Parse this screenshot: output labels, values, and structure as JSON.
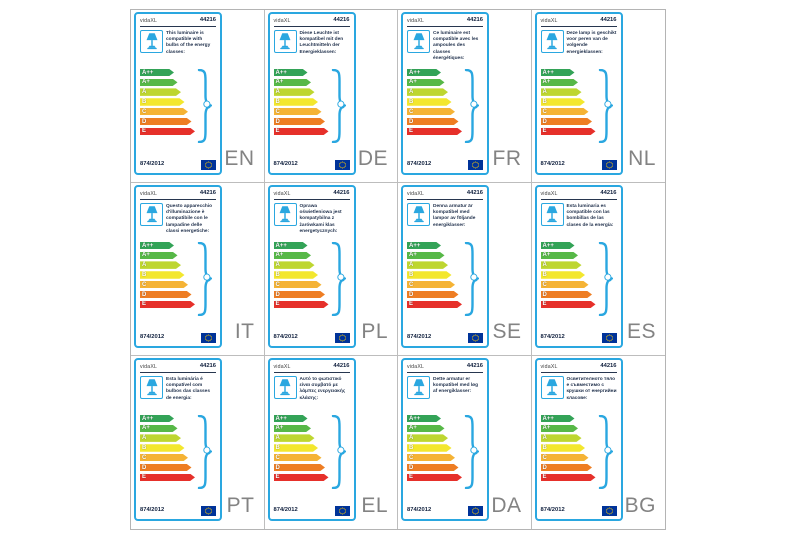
{
  "grid": {
    "columns": 4,
    "rows": 3
  },
  "shared": {
    "brand": "vidaXL",
    "model": "44216",
    "regulation": "874/2012",
    "accent_color": "#2aa7e0",
    "eu_flag": {
      "field_color": "#003399",
      "star_color": "#ffcc00"
    },
    "icons": [
      "table-lamp-icon",
      "bulb-icon",
      "curly-brace-icon",
      "eu-flag-icon"
    ],
    "energy_classes": [
      {
        "label": "A++",
        "color": "#33a357"
      },
      {
        "label": "A+",
        "color": "#57b847"
      },
      {
        "label": "A",
        "color": "#bed630"
      },
      {
        "label": "B",
        "color": "#f3e72e"
      },
      {
        "label": "C",
        "color": "#f5b335"
      },
      {
        "label": "D",
        "color": "#ee7d23"
      },
      {
        "label": "E",
        "color": "#e6302a"
      }
    ]
  },
  "cards": [
    {
      "lang": "EN",
      "description": "This luminaire is compatible with bulbs of the energy classes:"
    },
    {
      "lang": "DE",
      "description": "Diese Leuchte ist kompatibel mit den Leuchtmitteln der Energieklassen:"
    },
    {
      "lang": "FR",
      "description": "Ce luminaire est compatible avec les ampoules des classes énergétiques:"
    },
    {
      "lang": "NL",
      "description": "Deze lamp is geschikt voor peren van de volgende energieklassen:"
    },
    {
      "lang": "IT",
      "description": "Questo apparecchio d'illuminazione è compatibile con le lampadine delle classi energetiche:"
    },
    {
      "lang": "PL",
      "description": "Oprawa oświetleniowa jest kompatybilna z żarówkami klas energetycznych:"
    },
    {
      "lang": "SE",
      "description": "Denna armatur är kompatibel med lampor av följande energiklasser:"
    },
    {
      "lang": "ES",
      "description": "Esta luminaria es compatible con las bombillas de las clases de la energía:"
    },
    {
      "lang": "PT",
      "description": "Esta luminária é compatível com bulbos das classes de energia:"
    },
    {
      "lang": "EL",
      "description": "Αυτό το φωτιστικό είναι συμβατό με λάμπες ενεργειακής κλάσης:"
    },
    {
      "lang": "DA",
      "description": "Dette armatur er kompatibel med løg af energiklasser:"
    },
    {
      "lang": "BG",
      "description": "Осветителното тяло е съвместимо с крушки от енергийни класове:"
    }
  ]
}
